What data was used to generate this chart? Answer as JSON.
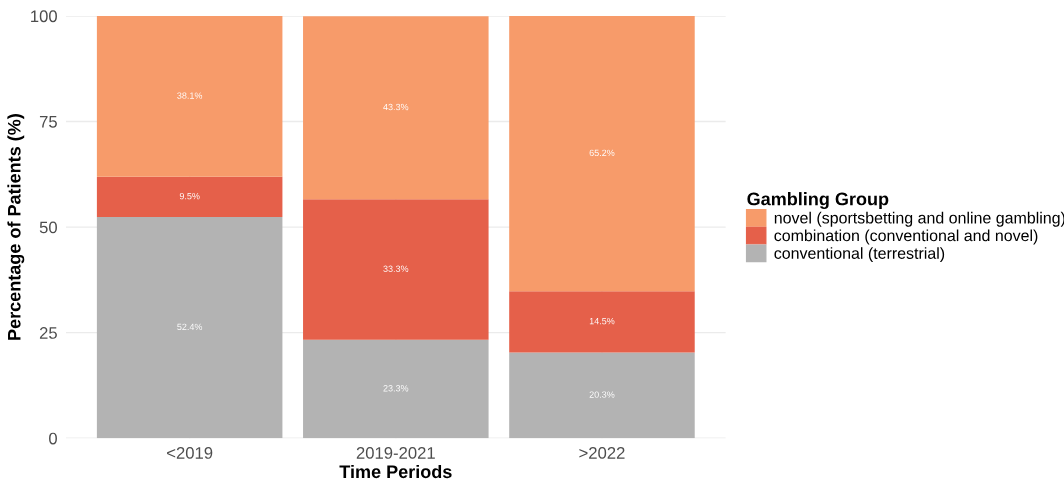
{
  "chart_data": {
    "type": "bar",
    "stacked": true,
    "xlabel": "Time Periods",
    "ylabel": "Percentage of Patients (%)",
    "legend_title": "Gambling Group",
    "categories": [
      "<2019",
      "2019-2021",
      ">2022"
    ],
    "series": [
      {
        "name": "conventional (terrestrial)",
        "color": "#b3b3b3",
        "values": [
          52.4,
          23.3,
          20.3
        ],
        "value_labels": [
          "52.4%",
          "23.3%",
          "20.3%"
        ]
      },
      {
        "name": "combination (conventional and novel)",
        "color": "#e5604a",
        "values": [
          9.5,
          33.3,
          14.5
        ],
        "value_labels": [
          "9.5%",
          "33.3%",
          "14.5%"
        ]
      },
      {
        "name": "novel (sportsbetting and online gambling)",
        "color": "#f79b6a",
        "values": [
          38.1,
          43.3,
          65.2
        ],
        "value_labels": [
          "38.1%",
          "43.3%",
          "65.2%"
        ]
      }
    ],
    "ylim": [
      0,
      100
    ],
    "yticks": [
      0,
      25,
      50,
      75,
      100
    ],
    "grid": true,
    "legend": "right"
  }
}
